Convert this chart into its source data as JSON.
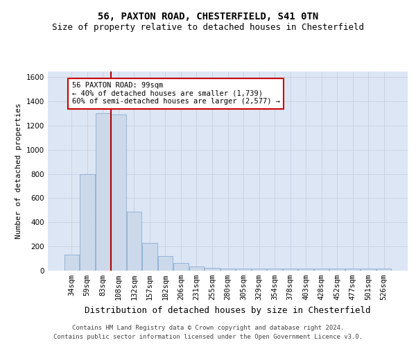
{
  "title": "56, PAXTON ROAD, CHESTERFIELD, S41 0TN",
  "subtitle": "Size of property relative to detached houses in Chesterfield",
  "xlabel": "Distribution of detached houses by size in Chesterfield",
  "ylabel": "Number of detached properties",
  "footer_line1": "Contains HM Land Registry data © Crown copyright and database right 2024.",
  "footer_line2": "Contains public sector information licensed under the Open Government Licence v3.0.",
  "categories": [
    "34sqm",
    "59sqm",
    "83sqm",
    "108sqm",
    "132sqm",
    "157sqm",
    "182sqm",
    "206sqm",
    "231sqm",
    "255sqm",
    "280sqm",
    "305sqm",
    "329sqm",
    "354sqm",
    "378sqm",
    "403sqm",
    "428sqm",
    "452sqm",
    "477sqm",
    "501sqm",
    "526sqm"
  ],
  "values": [
    130,
    800,
    1300,
    1290,
    490,
    230,
    120,
    65,
    35,
    25,
    20,
    20,
    20,
    20,
    20,
    20,
    20,
    20,
    20,
    20,
    20
  ],
  "bar_color": "#ccd9ea",
  "bar_edge_color": "#8aadd4",
  "vline_color": "#aa0000",
  "vline_x": 2.5,
  "annotation_text": "56 PAXTON ROAD: 99sqm\n← 40% of detached houses are smaller (1,739)\n60% of semi-detached houses are larger (2,577) →",
  "annotation_box_facecolor": "white",
  "annotation_box_edgecolor": "#cc0000",
  "ylim": [
    0,
    1650
  ],
  "yticks": [
    0,
    200,
    400,
    600,
    800,
    1000,
    1200,
    1400,
    1600
  ],
  "grid_color": "#c8d0e0",
  "plot_bg_color": "#dce6f5",
  "fig_bg_color": "#ffffff",
  "title_fontsize": 10,
  "subtitle_fontsize": 9,
  "ylabel_fontsize": 8,
  "xlabel_fontsize": 9,
  "tick_fontsize": 7.5,
  "ann_fontsize": 7.5,
  "footer_fontsize": 6.5
}
